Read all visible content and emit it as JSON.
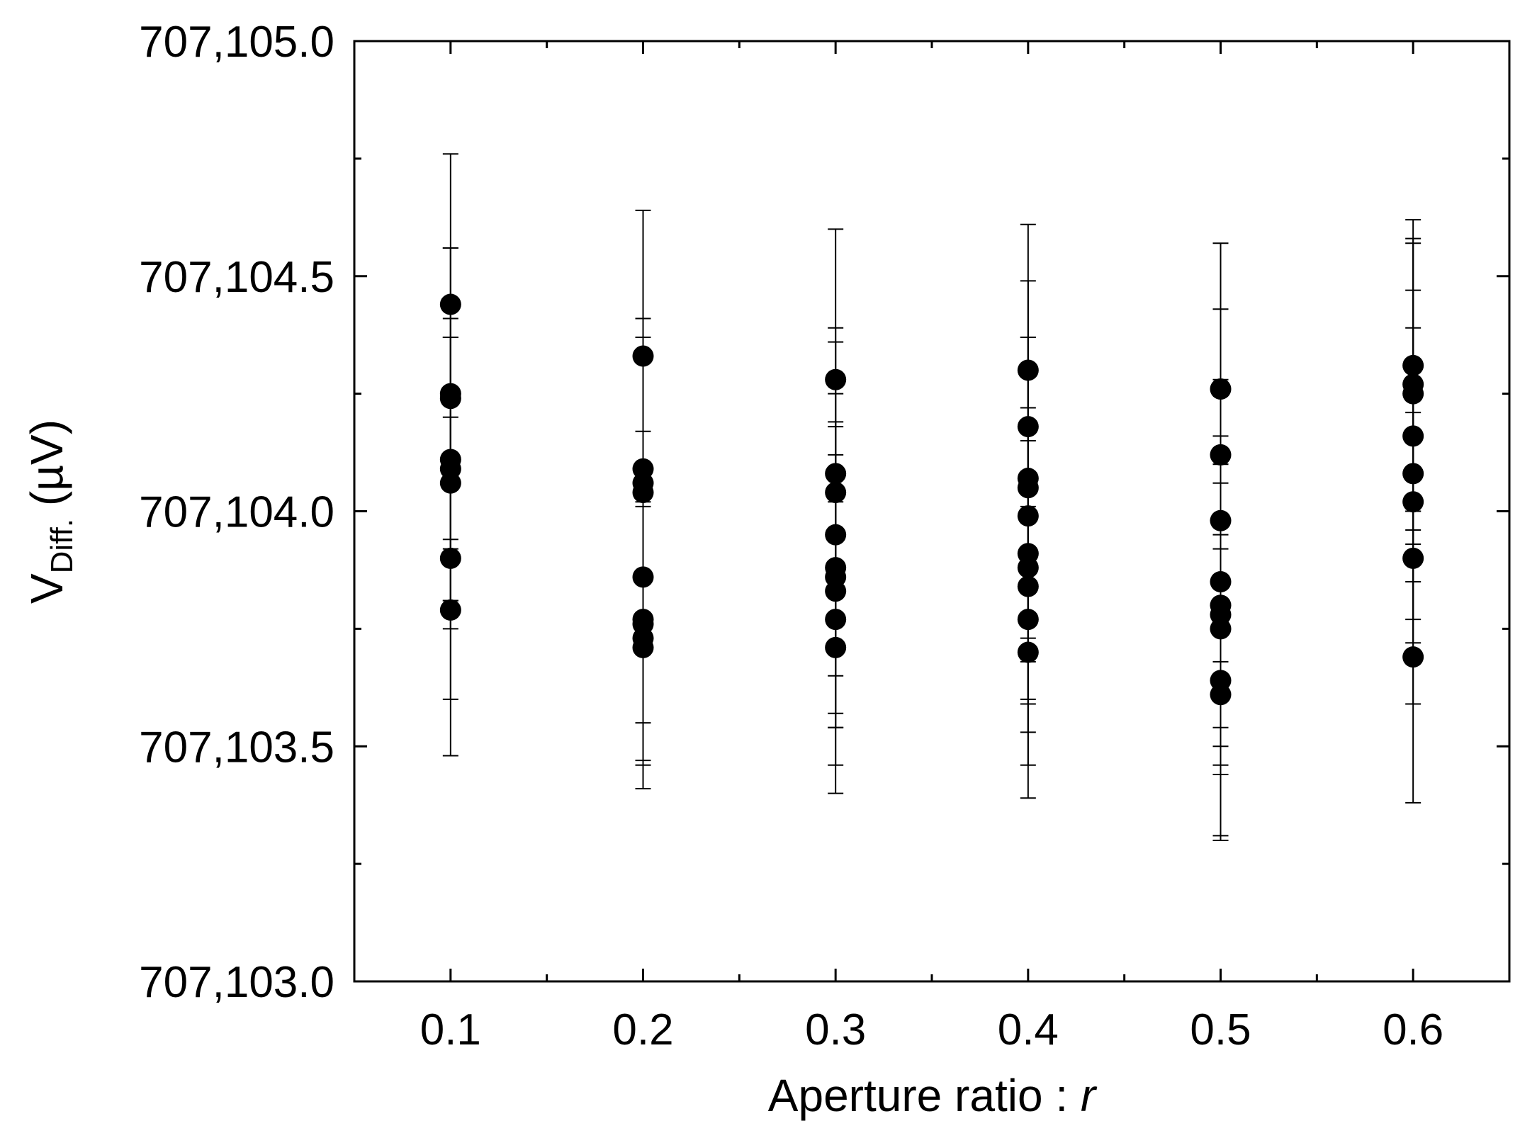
{
  "chart_data": {
    "type": "scatter",
    "title": "",
    "xlabel": "Aperture ratio : ",
    "xlabel_italic": "r",
    "ylabel_main": "V",
    "ylabel_sub": "Diff.",
    "ylabel_unit": " (µV)",
    "xlim": [
      0.05,
      0.65
    ],
    "ylim": [
      707103.0,
      707105.0
    ],
    "x_ticks": [
      0.1,
      0.2,
      0.3,
      0.4,
      0.5,
      0.6
    ],
    "x_tick_labels": [
      "0.1",
      "0.2",
      "0.3",
      "0.4",
      "0.5",
      "0.6"
    ],
    "y_ticks": [
      707103.0,
      707103.5,
      707104.0,
      707104.5,
      707105.0
    ],
    "y_tick_labels": [
      "707,103.0",
      "707,103.5",
      "707,104.0",
      "707,104.5",
      "707,105.0"
    ],
    "x_minor_ticks": [
      0.15,
      0.25,
      0.35,
      0.45,
      0.55
    ],
    "y_minor_ticks": [
      707103.25,
      707103.75,
      707104.25,
      707104.75
    ],
    "grid": false,
    "legend": "none",
    "marker_color": "#000000",
    "groups": [
      {
        "x": 0.1,
        "points": [
          {
            "y": 707104.44,
            "err": 0.32
          },
          {
            "y": 707104.25,
            "err": 0.31
          },
          {
            "y": 707104.24,
            "err": 0.32
          },
          {
            "y": 707104.11,
            "err": 0.3
          },
          {
            "y": 707104.09,
            "err": 0.28
          },
          {
            "y": 707104.06,
            "err": 0.31
          },
          {
            "y": 707103.9,
            "err": 0.3
          },
          {
            "y": 707103.79,
            "err": 0.31
          }
        ]
      },
      {
        "x": 0.2,
        "points": [
          {
            "y": 707104.33,
            "err": 0.31
          },
          {
            "y": 707104.09,
            "err": 0.32
          },
          {
            "y": 707104.06,
            "err": 0.31
          },
          {
            "y": 707104.04,
            "err": 0.3
          },
          {
            "y": 707103.86,
            "err": 0.31
          },
          {
            "y": 707103.77,
            "err": 0.31
          },
          {
            "y": 707103.76,
            "err": 0.29
          },
          {
            "y": 707103.73,
            "err": 0.32
          },
          {
            "y": 707103.71,
            "err": 0.3
          }
        ]
      },
      {
        "x": 0.3,
        "points": [
          {
            "y": 707104.28,
            "err": 0.32
          },
          {
            "y": 707104.08,
            "err": 0.31
          },
          {
            "y": 707104.04,
            "err": 0.32
          },
          {
            "y": 707103.95,
            "err": 0.3
          },
          {
            "y": 707103.88,
            "err": 0.31
          },
          {
            "y": 707103.86,
            "err": 0.32
          },
          {
            "y": 707103.83,
            "err": 0.29
          },
          {
            "y": 707103.77,
            "err": 0.31
          },
          {
            "y": 707103.71,
            "err": 0.31
          }
        ]
      },
      {
        "x": 0.4,
        "points": [
          {
            "y": 707104.3,
            "err": 0.31
          },
          {
            "y": 707104.18,
            "err": 0.31
          },
          {
            "y": 707104.07,
            "err": 0.3
          },
          {
            "y": 707104.05,
            "err": 0.32
          },
          {
            "y": 707103.99,
            "err": 0.31
          },
          {
            "y": 707103.91,
            "err": 0.31
          },
          {
            "y": 707103.88,
            "err": 0.29
          },
          {
            "y": 707103.84,
            "err": 0.31
          },
          {
            "y": 707103.77,
            "err": 0.31
          },
          {
            "y": 707103.7,
            "err": 0.31
          }
        ]
      },
      {
        "x": 0.5,
        "points": [
          {
            "y": 707104.26,
            "err": 0.31
          },
          {
            "y": 707104.12,
            "err": 0.31
          },
          {
            "y": 707103.98,
            "err": 0.3
          },
          {
            "y": 707103.85,
            "err": 0.31
          },
          {
            "y": 707103.8,
            "err": 0.3
          },
          {
            "y": 707103.78,
            "err": 0.32
          },
          {
            "y": 707103.75,
            "err": 0.31
          },
          {
            "y": 707103.64,
            "err": 0.33
          },
          {
            "y": 707103.61,
            "err": 0.31
          }
        ]
      },
      {
        "x": 0.6,
        "points": [
          {
            "y": 707104.31,
            "err": 0.31
          },
          {
            "y": 707104.27,
            "err": 0.31
          },
          {
            "y": 707104.25,
            "err": 0.32
          },
          {
            "y": 707104.16,
            "err": 0.31
          },
          {
            "y": 707104.08,
            "err": 0.31
          },
          {
            "y": 707104.02,
            "err": 0.3
          },
          {
            "y": 707103.9,
            "err": 0.31
          },
          {
            "y": 707103.69,
            "err": 0.31
          }
        ]
      }
    ]
  }
}
